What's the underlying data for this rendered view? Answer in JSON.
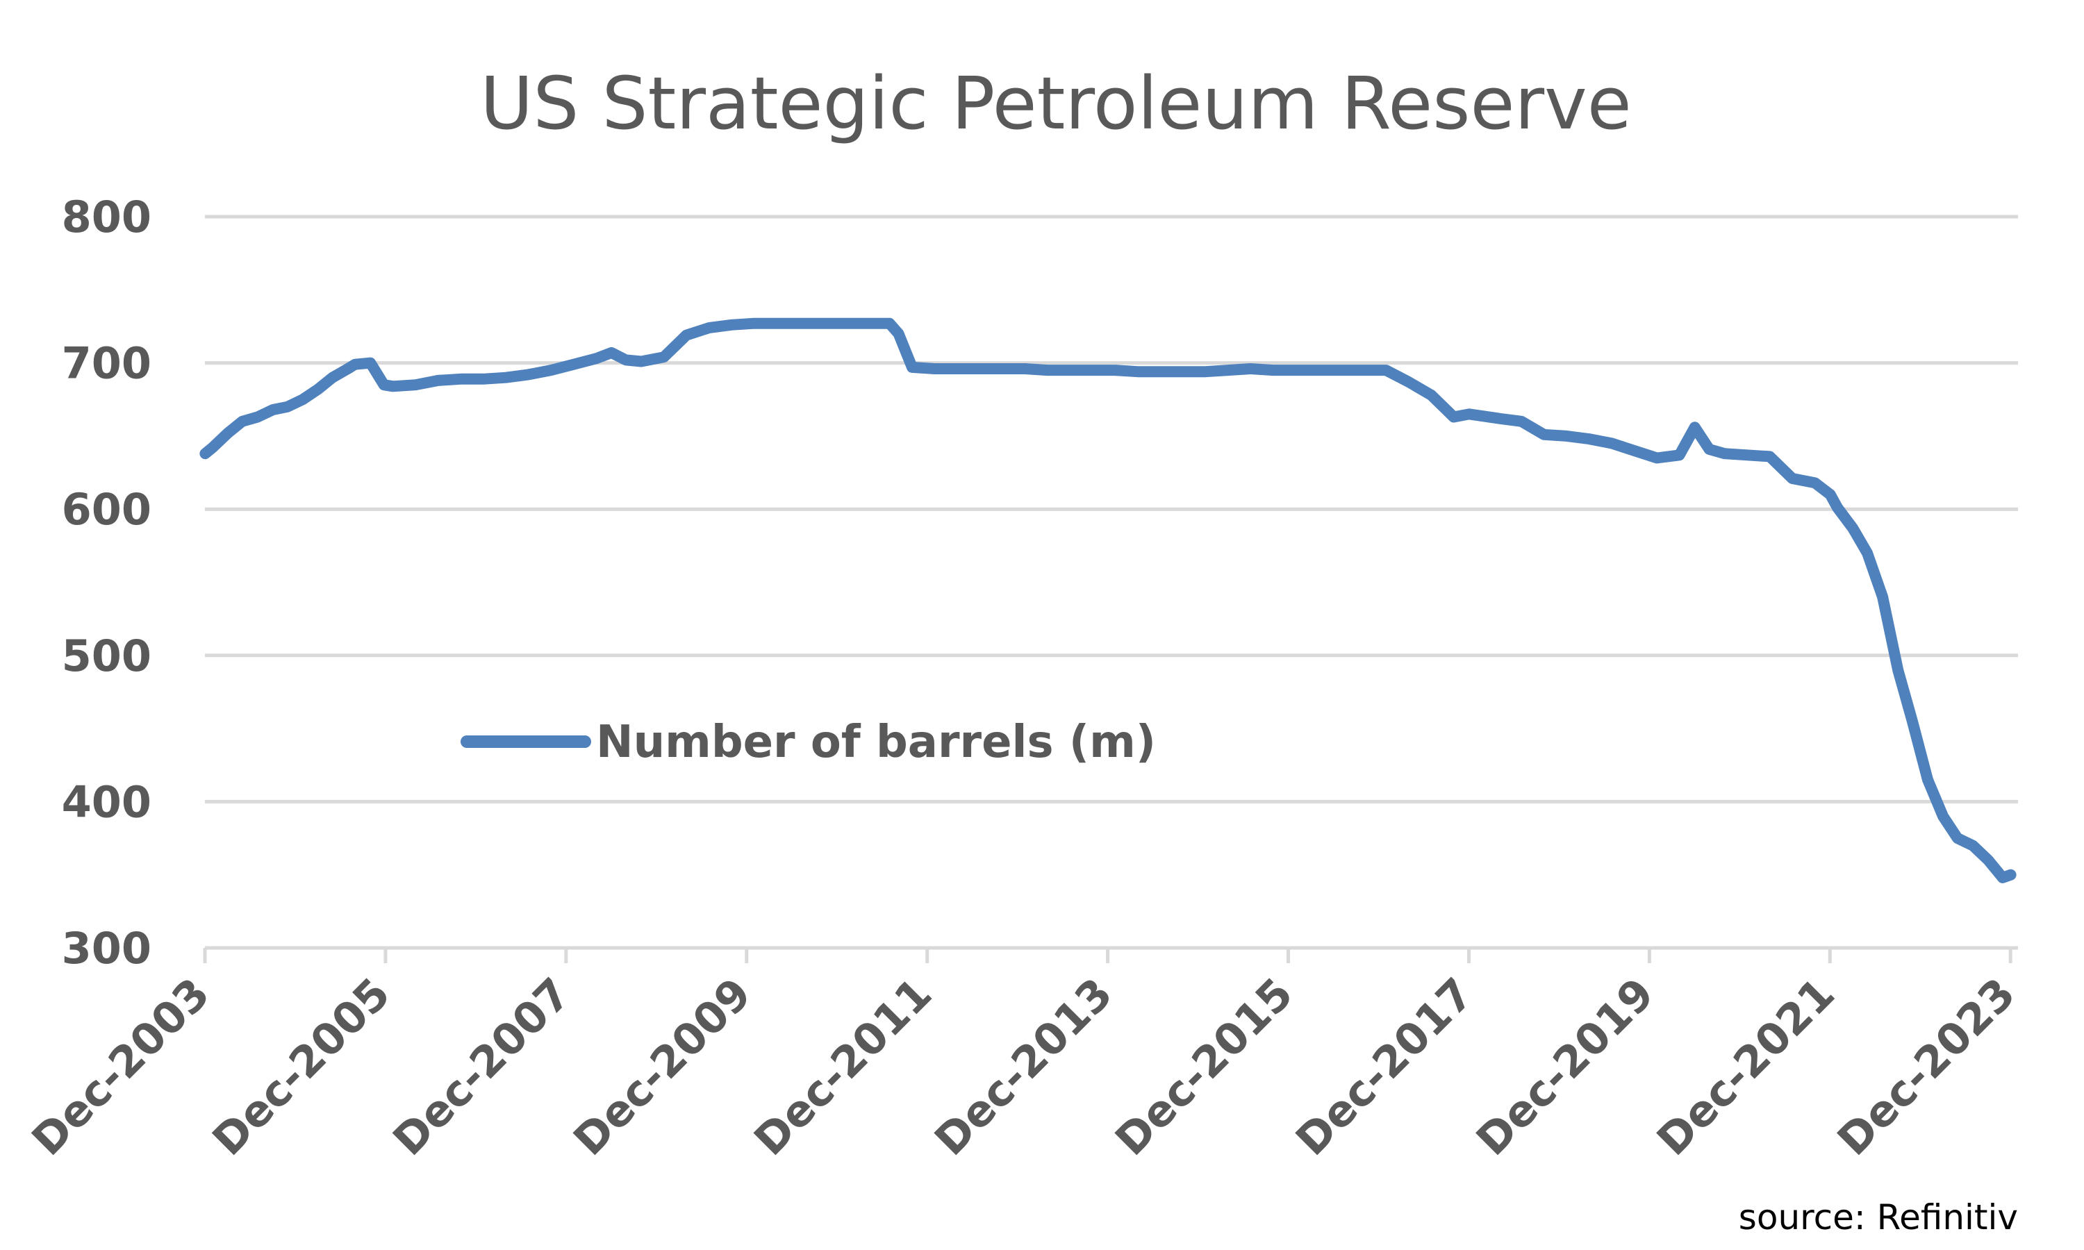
{
  "colors": {
    "line": "#4f81bd",
    "grid": "#d9d9d9",
    "text": "#595959"
  },
  "source_note": "source: Refinitiv",
  "chart_data": {
    "type": "line",
    "title": "US Strategic Petroleum Reserve",
    "xlabel": "",
    "ylabel": "",
    "ylim": [
      300,
      800
    ],
    "yticks": [
      300,
      400,
      500,
      600,
      700,
      800
    ],
    "xlim": [
      2003.917,
      2024.0
    ],
    "xtick_labels": [
      "Dec-2003",
      "Dec-2005",
      "Dec-2007",
      "Dec-2009",
      "Dec-2011",
      "Dec-2013",
      "Dec-2015",
      "Dec-2017",
      "Dec-2019",
      "Dec-2021",
      "Dec-2023"
    ],
    "xtick_values": [
      2003.917,
      2005.917,
      2007.917,
      2009.917,
      2011.917,
      2013.917,
      2015.917,
      2017.917,
      2019.917,
      2021.917,
      2023.917
    ],
    "grid": true,
    "legend": {
      "position": "center-left",
      "label": "Number of barrels (m)"
    },
    "series": [
      {
        "name": "Number of barrels (m)",
        "x": [
          2003.92,
          2004.0,
          2004.17,
          2004.33,
          2004.5,
          2004.67,
          2004.83,
          2005.0,
          2005.17,
          2005.33,
          2005.5,
          2005.58,
          2005.75,
          2005.9,
          2006.0,
          2006.25,
          2006.5,
          2006.75,
          2007.0,
          2007.25,
          2007.5,
          2007.75,
          2008.0,
          2008.25,
          2008.42,
          2008.58,
          2008.75,
          2009.0,
          2009.25,
          2009.5,
          2009.75,
          2010.0,
          2010.5,
          2011.0,
          2011.25,
          2011.5,
          2011.6,
          2011.75,
          2012.0,
          2012.5,
          2013.0,
          2013.25,
          2013.5,
          2013.75,
          2014.0,
          2014.25,
          2014.5,
          2014.75,
          2015.0,
          2015.25,
          2015.5,
          2015.75,
          2016.0,
          2016.25,
          2016.5,
          2016.75,
          2017.0,
          2017.25,
          2017.5,
          2017.75,
          2017.92,
          2018.25,
          2018.5,
          2018.75,
          2019.0,
          2019.25,
          2019.5,
          2019.75,
          2020.0,
          2020.25,
          2020.42,
          2020.58,
          2020.75,
          2021.0,
          2021.25,
          2021.5,
          2021.75,
          2021.92,
          2022.0,
          2022.17,
          2022.33,
          2022.5,
          2022.67,
          2022.83,
          2023.0,
          2023.17,
          2023.33,
          2023.5,
          2023.67,
          2023.83,
          2023.92
        ],
        "values": [
          638,
          642,
          652,
          660,
          663,
          668,
          670,
          675,
          682,
          690,
          696,
          699,
          700,
          685,
          684,
          685,
          688,
          689,
          689,
          690,
          692,
          695,
          699,
          703,
          707,
          702,
          701,
          704,
          719,
          724,
          726,
          727,
          727,
          727,
          727,
          727,
          720,
          697,
          696,
          696,
          696,
          695,
          695,
          695,
          695,
          694,
          694,
          694,
          694,
          695,
          696,
          695,
          695,
          695,
          695,
          695,
          695,
          687,
          678,
          663,
          665,
          662,
          660,
          651,
          650,
          648,
          645,
          640,
          635,
          637,
          656,
          641,
          638,
          637,
          636,
          621,
          618,
          610,
          601,
          587,
          570,
          540,
          490,
          455,
          415,
          390,
          375,
          370,
          360,
          348,
          350
        ]
      }
    ]
  }
}
